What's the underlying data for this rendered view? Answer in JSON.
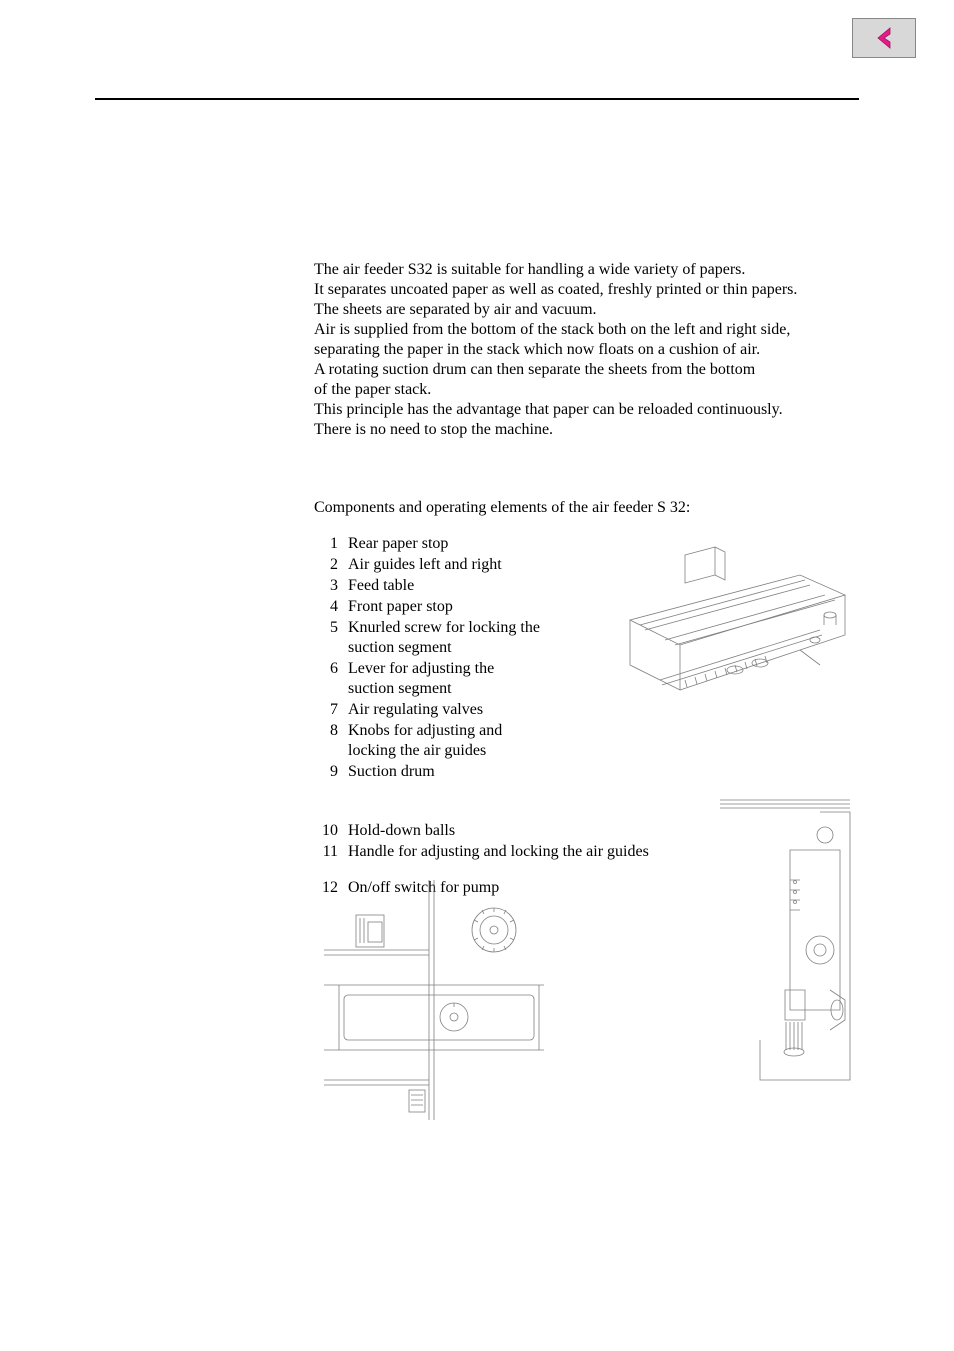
{
  "nav": {
    "back_icon_color": "#e61b8a",
    "button_bg": "#d8d8d8"
  },
  "intro": {
    "line1": "The air feeder S32 is suitable for handling a wide variety of papers.",
    "line2": "It separates uncoated paper as well as coated, freshly printed or thin papers.",
    "line3": "The sheets are separated by air and vacuum.",
    "line4": "Air is supplied from the bottom of the stack both on the left and right side,",
    "line5": "separating the paper in the stack which now floats on a cushion of air.",
    "line6": "A rotating suction drum can then separate the sheets from the bottom",
    "line7": "of the paper stack.",
    "line8": "This principle has the advantage that paper can be reloaded continuously.",
    "line9": "There is no need to stop the machine."
  },
  "subhead": "Components and operating elements of the air feeder S 32:",
  "components_a": [
    {
      "num": "1",
      "text": "Rear paper stop"
    },
    {
      "num": "2",
      "text": "Air guides left and right"
    },
    {
      "num": "3",
      "text": "Feed table"
    },
    {
      "num": "4",
      "text": "Front paper stop"
    },
    {
      "num": "5",
      "text": "Knurled screw for locking the suction segment"
    },
    {
      "num": "6",
      "text": "Lever for adjusting the suction segment"
    },
    {
      "num": "7",
      "text": "Air regulating valves"
    },
    {
      "num": "8",
      "text": "Knobs for adjusting and locking the air guides"
    },
    {
      "num": "9",
      "text": "Suction drum"
    }
  ],
  "components_b": [
    {
      "num": "10",
      "text": "Hold-down balls"
    },
    {
      "num": "11",
      "text": "Handle for adjusting and locking the air guides"
    }
  ],
  "components_c": [
    {
      "num": "12",
      "text": "On/off switch for pump"
    }
  ],
  "diagram_style": {
    "stroke": "#808080",
    "stroke_width": 0.8,
    "fill": "none"
  }
}
